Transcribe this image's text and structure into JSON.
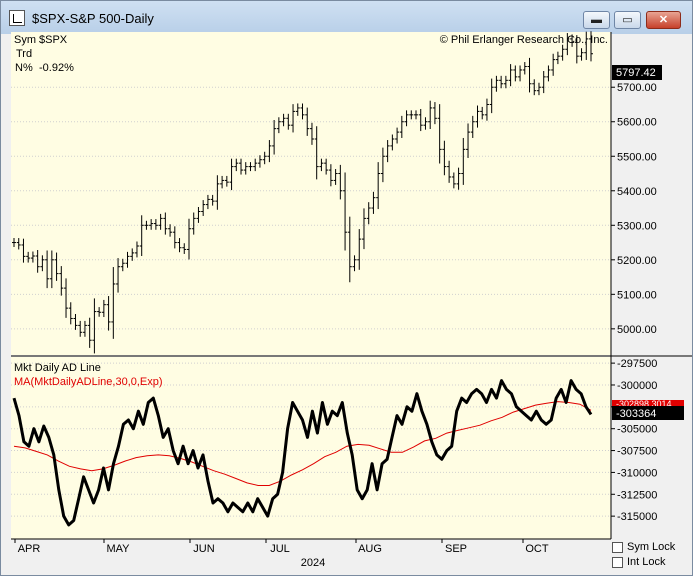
{
  "window": {
    "title": "$SPX-S&P 500-Daily",
    "min_label": "▬",
    "max_label": "▭",
    "close_label": "✕"
  },
  "upper_panel": {
    "sym_label": "Sym",
    "sym_value": "$SPX",
    "trd_label": "Trd",
    "nchg_label": "N%",
    "nchg_value": "-0.92%",
    "copyright": "© Phil Erlanger Research Co., Inc.",
    "last_price": "5797.42",
    "price_ticks": [
      "5700.00",
      "5600.00",
      "5500.00",
      "5400.00",
      "5300.00",
      "5200.00",
      "5100.00",
      "5000.00"
    ]
  },
  "lower_panel": {
    "title": "Mkt Daily AD Line",
    "ma_label": "MA(MktDailyADLine,30,0,Exp)",
    "last_value": "-303364",
    "ma_value_label": "-302898.3014",
    "ticks": [
      "-297500",
      "-300000",
      "-302500",
      "-305000",
      "-307500",
      "-310000",
      "-312500",
      "-315000"
    ]
  },
  "x_axis": {
    "months": [
      "APR",
      "MAY",
      "JUN",
      "JUL",
      "AUG",
      "SEP",
      "OCT"
    ],
    "year": "2024"
  },
  "controls": {
    "sym_lock": "Sym Lock",
    "int_lock": "Int Lock"
  },
  "colors": {
    "background": "#fffde3",
    "ad_line": "#000000",
    "ma_line": "#e00000",
    "marker_red": "#e00000"
  },
  "chart_data": [
    {
      "type": "line",
      "title": "$SPX-S&P 500-Daily",
      "ylim": [
        4930,
        5860
      ],
      "months": [
        "APR",
        "MAY",
        "JUN",
        "JUL",
        "AUG",
        "SEP",
        "OCT"
      ],
      "series": [
        {
          "values": [
            5250,
            5243,
            5210,
            5205,
            5211,
            5180,
            5200,
            5145,
            5200,
            5160,
            5118,
            5060,
            5030,
            5010,
            4990,
            5010,
            4967,
            5050,
            5048,
            5070,
            5020,
            5130,
            5180,
            5190,
            5210,
            5220,
            5240,
            5300,
            5300,
            5305,
            5300,
            5320,
            5290,
            5280,
            5250,
            5235,
            5230,
            5290,
            5320,
            5340,
            5360,
            5375,
            5370,
            5420,
            5430,
            5425,
            5470,
            5480,
            5460,
            5470,
            5470,
            5480,
            5490,
            5500,
            5530,
            5580,
            5600,
            5610,
            5590,
            5630,
            5640,
            5620,
            5580,
            5550,
            5470,
            5480,
            5460,
            5430,
            5450,
            5400,
            5280,
            5180,
            5200,
            5260,
            5320,
            5350,
            5380,
            5450,
            5500,
            5530,
            5550,
            5570,
            5600,
            5620,
            5620,
            5620,
            5590,
            5600,
            5640,
            5610,
            5520,
            5470,
            5440,
            5420,
            5450,
            5520,
            5570,
            5600,
            5630,
            5620,
            5650,
            5700,
            5720,
            5710,
            5720,
            5750,
            5730,
            5750,
            5760,
            5710,
            5690,
            5700,
            5730,
            5750,
            5780,
            5790,
            5810,
            5840,
            5830,
            5790,
            5800,
            5840,
            5797
          ]
        }
      ]
    },
    {
      "type": "line",
      "title": "Mkt Daily AD Line",
      "ylim": [
        -317500,
        -296800
      ],
      "months": [
        "APR",
        "MAY",
        "JUN",
        "JUL",
        "AUG",
        "SEP",
        "OCT"
      ],
      "series": [
        {
          "name": "Mkt Daily AD Line",
          "values": [
            -301500,
            -303500,
            -306500,
            -307000,
            -305000,
            -306500,
            -304700,
            -306000,
            -308000,
            -312000,
            -315000,
            -316000,
            -315500,
            -313000,
            -310500,
            -312000,
            -313500,
            -312000,
            -309500,
            -312000,
            -309000,
            -307000,
            -304500,
            -304000,
            -305000,
            -303000,
            -304500,
            -302000,
            -301500,
            -303500,
            -306000,
            -305000,
            -307500,
            -309000,
            -307000,
            -309000,
            -307500,
            -309500,
            -308000,
            -311000,
            -313500,
            -313000,
            -313500,
            -314500,
            -313500,
            -314000,
            -314500,
            -313500,
            -314500,
            -313000,
            -314000,
            -315000,
            -313000,
            -312500,
            -310000,
            -305000,
            -302000,
            -303000,
            -304000,
            -306000,
            -303000,
            -305500,
            -302000,
            -304500,
            -303000,
            -303500,
            -302000,
            -305500,
            -308000,
            -312000,
            -313000,
            -312000,
            -309000,
            -312000,
            -309000,
            -308500,
            -306000,
            -303500,
            -304500,
            -302500,
            -303000,
            -301000,
            -303000,
            -304500,
            -306500,
            -308000,
            -308500,
            -307500,
            -307000,
            -303000,
            -301500,
            -302000,
            -301000,
            -300500,
            -301000,
            -302000,
            -300500,
            -301500,
            -299500,
            -300500,
            -301000,
            -302500,
            -303000,
            -303500,
            -304000,
            -303000,
            -304000,
            -304500,
            -304000,
            -301500,
            -300500,
            -302000,
            -299500,
            -300500,
            -301000,
            -302500,
            -303364
          ]
        },
        {
          "name": "MA(MktDailyADLine,30,0,Exp)",
          "values": [
            -307000,
            -307200,
            -307600,
            -308000,
            -308700,
            -309300,
            -309600,
            -309800,
            -309600,
            -309200,
            -308700,
            -308300,
            -308100,
            -308000,
            -308100,
            -308400,
            -308800,
            -309300,
            -309800,
            -310200,
            -310700,
            -311200,
            -311500,
            -311500,
            -311000,
            -310300,
            -309700,
            -309000,
            -308200,
            -307700,
            -307000,
            -306800,
            -306900,
            -307300,
            -307700,
            -307700,
            -307100,
            -306400,
            -306100,
            -305500,
            -305200,
            -304900,
            -304600,
            -304100,
            -303700,
            -303100,
            -302700,
            -302300,
            -302100,
            -301900,
            -302000,
            -302200,
            -302898
          ]
        }
      ]
    }
  ]
}
